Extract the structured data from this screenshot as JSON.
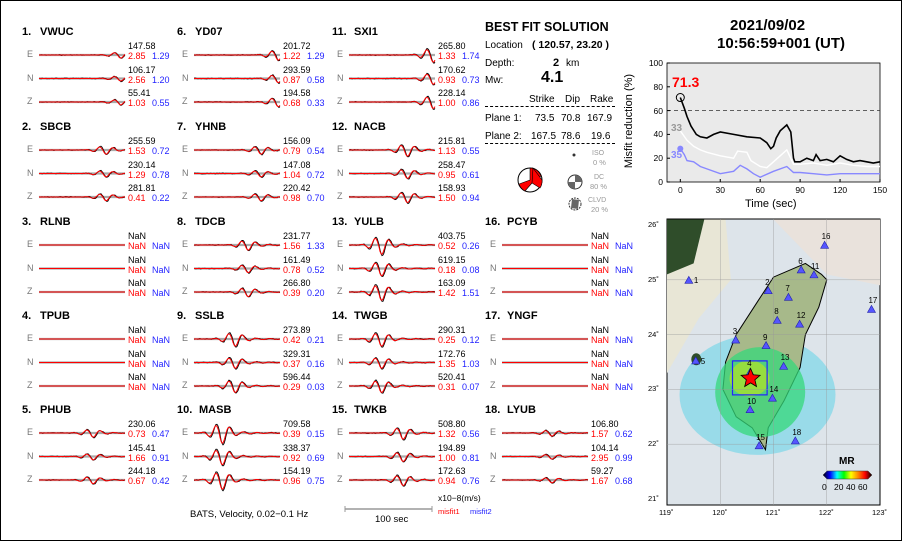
{
  "stations": [
    {
      "id": "1.",
      "name": "VWUC",
      "traces": [
        [
          "E",
          "147.58",
          "2.85",
          "1.29"
        ],
        [
          "N",
          "106.17",
          "2.56",
          "1.20"
        ],
        [
          "Z",
          "55.41",
          "1.03",
          "0.55"
        ]
      ]
    },
    {
      "id": "2.",
      "name": "SBCB",
      "traces": [
        [
          "E",
          "255.59",
          "1.53",
          "0.72"
        ],
        [
          "N",
          "230.14",
          "1.29",
          "0.78"
        ],
        [
          "Z",
          "281.81",
          "0.41",
          "0.22"
        ]
      ]
    },
    {
      "id": "3.",
      "name": "RLNB",
      "traces": [
        [
          "E",
          "NaN",
          "NaN",
          "NaN"
        ],
        [
          "N",
          "NaN",
          "NaN",
          "NaN"
        ],
        [
          "Z",
          "NaN",
          "NaN",
          "NaN"
        ]
      ]
    },
    {
      "id": "4.",
      "name": "TPUB",
      "traces": [
        [
          "E",
          "NaN",
          "NaN",
          "NaN"
        ],
        [
          "N",
          "NaN",
          "NaN",
          "NaN"
        ],
        [
          "Z",
          "NaN",
          "NaN",
          "NaN"
        ]
      ]
    },
    {
      "id": "5.",
      "name": "PHUB",
      "traces": [
        [
          "E",
          "230.06",
          "0.73",
          "0.47"
        ],
        [
          "N",
          "145.41",
          "1.66",
          "0.91"
        ],
        [
          "Z",
          "244.18",
          "0.67",
          "0.42"
        ]
      ]
    },
    {
      "id": "6.",
      "name": "YD07",
      "traces": [
        [
          "E",
          "201.72",
          "1.22",
          "1.29"
        ],
        [
          "N",
          "293.59",
          "0.87",
          "0.58"
        ],
        [
          "Z",
          "194.58",
          "0.68",
          "0.33"
        ]
      ]
    },
    {
      "id": "7.",
      "name": "YHNB",
      "traces": [
        [
          "E",
          "156.09",
          "0.79",
          "0.54"
        ],
        [
          "N",
          "147.08",
          "1.04",
          "0.72"
        ],
        [
          "Z",
          "220.42",
          "0.98",
          "0.70"
        ]
      ]
    },
    {
      "id": "8.",
      "name": "TDCB",
      "traces": [
        [
          "E",
          "231.77",
          "1.56",
          "1.33"
        ],
        [
          "N",
          "161.49",
          "0.78",
          "0.52"
        ],
        [
          "Z",
          "266.80",
          "0.39",
          "0.20"
        ]
      ]
    },
    {
      "id": "9.",
      "name": "SSLB",
      "traces": [
        [
          "E",
          "273.89",
          "0.42",
          "0.21"
        ],
        [
          "N",
          "329.31",
          "0.37",
          "0.16"
        ],
        [
          "Z",
          "596.44",
          "0.29",
          "0.03"
        ]
      ]
    },
    {
      "id": "10.",
      "name": "MASB",
      "traces": [
        [
          "E",
          "709.58",
          "0.39",
          "0.15"
        ],
        [
          "N",
          "338.37",
          "0.92",
          "0.69"
        ],
        [
          "Z",
          "154.19",
          "0.96",
          "0.75"
        ]
      ]
    },
    {
      "id": "11.",
      "name": "SXI1",
      "traces": [
        [
          "E",
          "265.80",
          "1.33",
          "1.74"
        ],
        [
          "N",
          "170.62",
          "0.93",
          "0.73"
        ],
        [
          "Z",
          "228.14",
          "1.00",
          "0.86"
        ]
      ]
    },
    {
      "id": "12.",
      "name": "NACB",
      "traces": [
        [
          "E",
          "215.81",
          "1.13",
          "0.55"
        ],
        [
          "N",
          "258.47",
          "0.95",
          "0.61"
        ],
        [
          "Z",
          "158.93",
          "1.50",
          "0.94"
        ]
      ]
    },
    {
      "id": "13.",
      "name": "YULB",
      "traces": [
        [
          "E",
          "403.75",
          "0.52",
          "0.26"
        ],
        [
          "N",
          "619.15",
          "0.18",
          "0.08"
        ],
        [
          "Z",
          "163.09",
          "1.42",
          "1.51"
        ]
      ]
    },
    {
      "id": "14.",
      "name": "TWGB",
      "traces": [
        [
          "E",
          "290.31",
          "0.25",
          "0.12"
        ],
        [
          "N",
          "172.76",
          "1.35",
          "1.03"
        ],
        [
          "Z",
          "520.41",
          "0.31",
          "0.07"
        ]
      ]
    },
    {
      "id": "15.",
      "name": "TWKB",
      "traces": [
        [
          "E",
          "508.80",
          "1.32",
          "0.56"
        ],
        [
          "N",
          "194.89",
          "1.00",
          "0.81"
        ],
        [
          "Z",
          "172.63",
          "0.94",
          "0.76"
        ]
      ]
    },
    {
      "id": "16.",
      "name": "PCYB",
      "traces": [
        [
          "E",
          "NaN",
          "NaN",
          "NaN"
        ],
        [
          "N",
          "NaN",
          "NaN",
          "NaN"
        ],
        [
          "Z",
          "NaN",
          "NaN",
          "NaN"
        ]
      ]
    },
    {
      "id": "17.",
      "name": "YNGF",
      "traces": [
        [
          "E",
          "NaN",
          "NaN",
          "NaN"
        ],
        [
          "N",
          "NaN",
          "NaN",
          "NaN"
        ],
        [
          "Z",
          "NaN",
          "NaN",
          "NaN"
        ]
      ]
    },
    {
      "id": "18.",
      "name": "LYUB",
      "traces": [
        [
          "E",
          "106.80",
          "1.57",
          "0.62"
        ],
        [
          "N",
          "104.14",
          "2.95",
          "0.99"
        ],
        [
          "Z",
          "59.27",
          "1.67",
          "0.68"
        ]
      ]
    }
  ],
  "solution": {
    "title": "BEST FIT SOLUTION",
    "location_label": "Location",
    "location_value": "( 120.57,  23.20 )",
    "depth_label": "Depth:",
    "depth_value": "2",
    "depth_unit": "km",
    "mw_label": "Mw:",
    "mw_value": "4.1",
    "headers": [
      "Strike",
      "Dip",
      "Rake"
    ],
    "planes": [
      {
        "label": "Plane 1:",
        "values": [
          "73.5",
          "70.8",
          "167.9"
        ]
      },
      {
        "label": "Plane 2:",
        "values": [
          "167.5",
          "78.6",
          "19.6"
        ]
      }
    ],
    "components": [
      {
        "name": "ISO",
        "pct": "0 %"
      },
      {
        "name": "DC",
        "pct": "80 %"
      },
      {
        "name": "CLVD",
        "pct": "20 %"
      }
    ]
  },
  "datetime": {
    "date": "2021/09/02",
    "time": "10:56:59+001  (UT)"
  },
  "footer": {
    "caption": "BATS, Velocity, 0.02−0.1 Hz",
    "scale_label": "100 sec",
    "units": "x10−8(m/s)",
    "misfit1": "misfit1",
    "misfit2": "misfit2"
  },
  "colors": {
    "observed": "#000000",
    "synthetic": "#ff0000",
    "misfit1": "#ff0000",
    "misfit2": "#2222ff"
  },
  "chart_data": [
    {
      "type": "line",
      "xlabel": "Time (sec)",
      "ylabel": "Misfit reduction (%)",
      "xlim": [
        -10,
        150
      ],
      "ylim": [
        0,
        100
      ],
      "xticks": [
        "0",
        "30",
        "60",
        "90",
        "120",
        "150"
      ],
      "yticks": [
        "0",
        "20",
        "40",
        "60",
        "80",
        "100"
      ],
      "reference_line": 60,
      "peak_label": "71.3",
      "label_white": "33",
      "label_blue": "35",
      "series": [
        {
          "color": "#000000",
          "x": [
            0,
            3,
            5,
            8,
            12,
            15,
            20,
            25,
            30,
            40,
            50,
            60,
            65,
            68,
            70,
            72,
            75,
            80,
            83,
            85,
            86,
            90,
            95,
            100,
            102,
            105,
            110,
            115,
            120,
            125,
            130,
            135,
            140,
            145,
            150
          ],
          "y": [
            71,
            62,
            55,
            47,
            40,
            38,
            37,
            40,
            42,
            40,
            38,
            37,
            33,
            28,
            30,
            37,
            43,
            48,
            42,
            20,
            17,
            17,
            20,
            18,
            23,
            18,
            19,
            17,
            22,
            19,
            17,
            18,
            17,
            16,
            17
          ]
        },
        {
          "color": "#ffffff",
          "x": [
            0,
            5,
            10,
            15,
            20,
            30,
            40,
            43,
            50,
            53,
            60,
            65,
            70,
            75,
            80,
            85,
            90,
            100,
            110,
            120,
            130,
            140,
            150
          ],
          "y": [
            43,
            35,
            30,
            27,
            25,
            22,
            20,
            26,
            25,
            18,
            13,
            12,
            17,
            22,
            27,
            15,
            15,
            16,
            14,
            16,
            14,
            13,
            13
          ]
        },
        {
          "color": "#8888ff",
          "x": [
            0,
            3,
            5,
            10,
            15,
            20,
            30,
            40,
            45,
            50,
            55,
            60,
            70,
            80,
            85,
            90,
            100,
            110,
            120,
            130,
            140,
            150
          ],
          "y": [
            28,
            23,
            18,
            17,
            13,
            11,
            7,
            9,
            14,
            11,
            7,
            4,
            9,
            13,
            8,
            8,
            7,
            6,
            7,
            7,
            7,
            7
          ]
        }
      ]
    },
    {
      "type": "map",
      "legend_title": "MR",
      "legend_ticks": [
        "0",
        "20",
        "40",
        "60"
      ],
      "lon_ticks": [
        "119˚",
        "120˚",
        "121˚",
        "122˚",
        "123˚"
      ],
      "lat_ticks": [
        "21˚",
        "22˚",
        "23˚",
        "24˚",
        "25˚",
        "26˚"
      ],
      "epicenter": [
        120.57,
        23.2
      ],
      "stations": [
        [
          "1",
          119.41,
          24.99
        ],
        [
          "2",
          120.9,
          24.8
        ],
        [
          "3",
          120.29,
          23.9
        ],
        [
          "4",
          120.56,
          23.31
        ],
        [
          "5",
          119.54,
          23.52
        ],
        [
          "6",
          121.52,
          25.18
        ],
        [
          "7",
          121.28,
          24.68
        ],
        [
          "8",
          121.07,
          24.26
        ],
        [
          "9",
          120.86,
          23.8
        ],
        [
          "10",
          120.56,
          22.63
        ],
        [
          "11",
          121.76,
          25.09
        ],
        [
          "12",
          121.49,
          24.19
        ],
        [
          "13",
          121.19,
          23.42
        ],
        [
          "14",
          120.98,
          22.84
        ],
        [
          "15",
          120.73,
          21.97
        ],
        [
          "16",
          121.96,
          25.63
        ],
        [
          "17",
          122.84,
          24.46
        ],
        [
          "18",
          121.41,
          22.06
        ]
      ]
    }
  ]
}
